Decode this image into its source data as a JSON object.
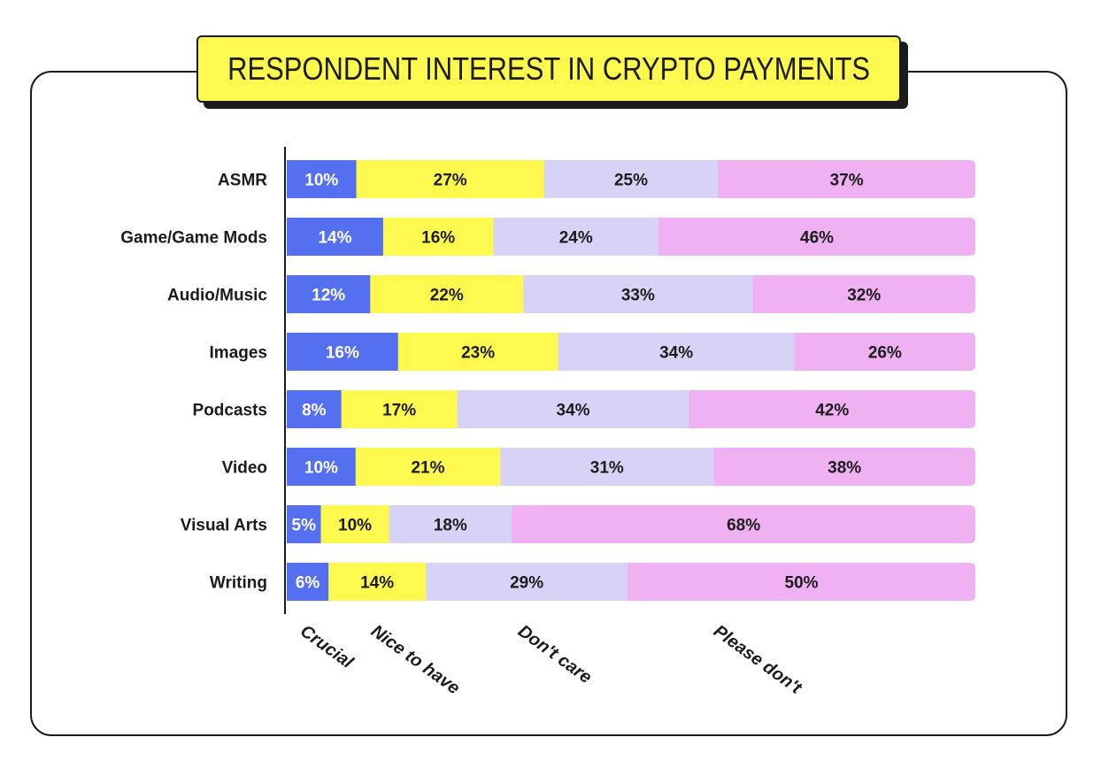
{
  "title": "RESPONDENT INTEREST IN CRYPTO PAYMENTS",
  "chart_data": {
    "type": "bar",
    "orientation": "horizontal",
    "stacked": true,
    "title": "RESPONDENT INTEREST IN CRYPTO PAYMENTS",
    "xlabel": "",
    "ylabel": "",
    "categories": [
      "ASMR",
      "Game/Game Mods",
      "Audio/Music",
      "Images",
      "Podcasts",
      "Video",
      "Visual Arts",
      "Writing"
    ],
    "series": [
      {
        "name": "Crucial",
        "color": "#5470f0",
        "values": [
          10,
          14,
          12,
          16,
          8,
          10,
          5,
          6
        ],
        "labels": [
          "10%",
          "14%",
          "12%",
          "16%",
          "8%",
          "10%",
          "5%",
          "6%"
        ]
      },
      {
        "name": "Nice to have",
        "color": "#fdf94f",
        "values": [
          27,
          16,
          22,
          23,
          17,
          21,
          10,
          14
        ],
        "labels": [
          "27%",
          "16%",
          "22%",
          "23%",
          "17%",
          "21%",
          "10%",
          "14%"
        ]
      },
      {
        "name": "Don't care",
        "color": "#d9d2f7",
        "values": [
          25,
          24,
          33,
          34,
          34,
          31,
          18,
          29
        ],
        "labels": [
          "25%",
          "24%",
          "33%",
          "34%",
          "34%",
          "31%",
          "18%",
          "29%"
        ]
      },
      {
        "name": "Please don't",
        "color": "#efb1f2",
        "values": [
          37,
          46,
          32,
          26,
          42,
          38,
          68,
          50
        ],
        "labels": [
          "37%",
          "46%",
          "32%",
          "26%",
          "42%",
          "38%",
          "68%",
          "50%"
        ]
      }
    ],
    "legend_position": "bottom",
    "grid": false
  }
}
